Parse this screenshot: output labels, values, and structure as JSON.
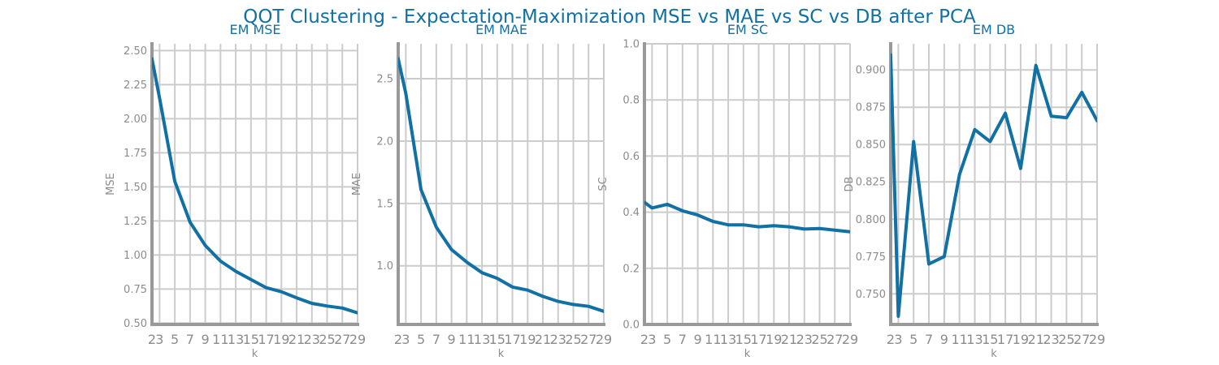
{
  "figure": {
    "suptitle": "QOT Clustering - Expectation-Maximization MSE vs MAE vs SC vs DB after PCA",
    "title_color": "#1170a4",
    "line_color": "#1170a4",
    "grid_color": "#cccccc",
    "spine_color": "#999999",
    "tick_color": "#8c8c8c"
  },
  "chart_data": [
    {
      "type": "line",
      "title": "EM MSE",
      "xlabel": "k",
      "ylabel": "MSE",
      "grid": true,
      "xlim": [
        2,
        29
      ],
      "ylim": [
        0.49,
        2.55
      ],
      "x": [
        2,
        3,
        5,
        7,
        9,
        11,
        13,
        15,
        17,
        19,
        21,
        23,
        25,
        27,
        29
      ],
      "x_tick_labels": [
        "2",
        "3",
        "5",
        "7",
        "9",
        "11",
        "13",
        "15",
        "17",
        "19",
        "21",
        "23",
        "25",
        "27",
        "29"
      ],
      "yticks": [
        0.5,
        0.75,
        1.0,
        1.25,
        1.5,
        1.75,
        2.0,
        2.25,
        2.5
      ],
      "y_tick_labels": [
        "0.50",
        "0.75",
        "1.00",
        "1.25",
        "1.50",
        "1.75",
        "2.00",
        "2.25",
        "2.50"
      ],
      "series": [
        {
          "values": [
            2.44,
            2.15,
            1.54,
            1.24,
            1.07,
            0.955,
            0.88,
            0.82,
            0.76,
            0.73,
            0.685,
            0.645,
            0.625,
            0.61,
            0.575
          ]
        }
      ]
    },
    {
      "type": "line",
      "title": "EM MAE",
      "xlabel": "k",
      "ylabel": "MAE",
      "grid": true,
      "xlim": [
        2,
        29
      ],
      "ylim": [
        0.53,
        2.78
      ],
      "x": [
        2,
        3,
        5,
        7,
        9,
        11,
        13,
        15,
        17,
        19,
        21,
        23,
        25,
        27,
        29
      ],
      "x_tick_labels": [
        "2",
        "3",
        "5",
        "7",
        "9",
        "11",
        "13",
        "15",
        "17",
        "19",
        "21",
        "23",
        "25",
        "27",
        "29"
      ],
      "yticks": [
        1.0,
        1.5,
        2.0,
        2.5
      ],
      "y_tick_labels": [
        "1.0",
        "1.5",
        "2.0",
        "2.5"
      ],
      "series": [
        {
          "values": [
            2.66,
            2.38,
            1.61,
            1.31,
            1.13,
            1.03,
            0.945,
            0.9,
            0.83,
            0.805,
            0.755,
            0.715,
            0.69,
            0.675,
            0.635
          ]
        }
      ]
    },
    {
      "type": "line",
      "title": "EM SC",
      "xlabel": "k",
      "ylabel": "SC",
      "grid": true,
      "xlim": [
        2,
        29
      ],
      "ylim": [
        0.0,
        1.0
      ],
      "x": [
        2,
        3,
        5,
        7,
        9,
        11,
        13,
        15,
        17,
        19,
        21,
        23,
        25,
        27,
        29
      ],
      "x_tick_labels": [
        "2",
        "3",
        "5",
        "7",
        "9",
        "11",
        "13",
        "15",
        "17",
        "19",
        "21",
        "23",
        "25",
        "27",
        "29"
      ],
      "yticks": [
        0.0,
        0.2,
        0.4,
        0.6,
        0.8,
        1.0
      ],
      "y_tick_labels": [
        "0.0",
        "0.2",
        "0.4",
        "0.6",
        "0.8",
        "1.0"
      ],
      "series": [
        {
          "values": [
            0.435,
            0.415,
            0.428,
            0.405,
            0.39,
            0.367,
            0.355,
            0.355,
            0.348,
            0.352,
            0.348,
            0.34,
            0.342,
            0.336,
            0.33
          ]
        }
      ]
    },
    {
      "type": "line",
      "title": "EM DB",
      "xlabel": "k",
      "ylabel": "DB",
      "grid": true,
      "xlim": [
        2,
        29
      ],
      "ylim": [
        0.7295,
        0.9175
      ],
      "x": [
        2,
        3,
        5,
        7,
        9,
        11,
        13,
        15,
        17,
        19,
        21,
        23,
        25,
        27,
        29
      ],
      "x_tick_labels": [
        "2",
        "3",
        "5",
        "7",
        "9",
        "11",
        "13",
        "15",
        "17",
        "19",
        "21",
        "23",
        "25",
        "27",
        "29"
      ],
      "yticks": [
        0.75,
        0.775,
        0.8,
        0.825,
        0.85,
        0.875,
        0.9
      ],
      "y_tick_labels": [
        "0.750",
        "0.775",
        "0.800",
        "0.825",
        "0.850",
        "0.875",
        "0.900"
      ],
      "series": [
        {
          "values": [
            0.91,
            0.735,
            0.852,
            0.77,
            0.775,
            0.83,
            0.86,
            0.852,
            0.871,
            0.834,
            0.903,
            0.869,
            0.868,
            0.885,
            0.866
          ]
        }
      ]
    }
  ]
}
